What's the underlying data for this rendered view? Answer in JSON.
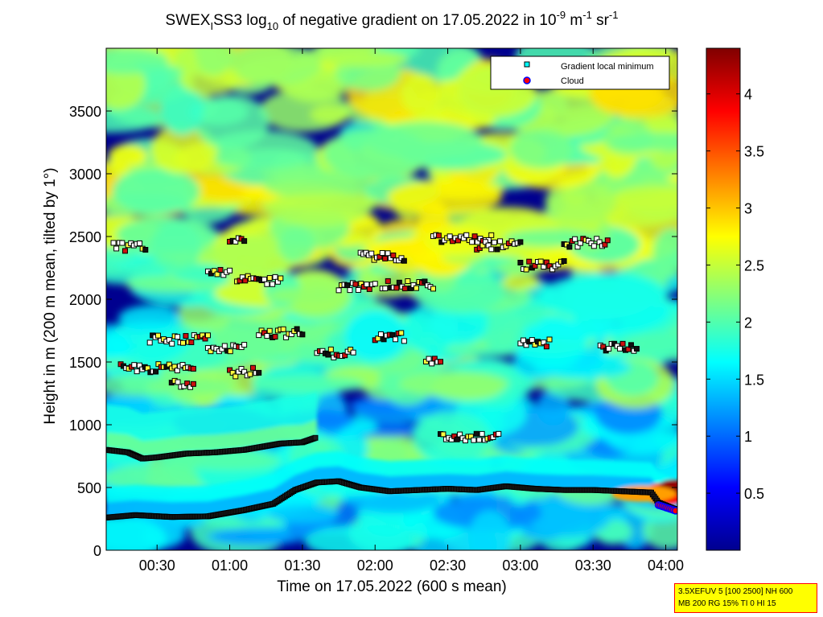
{
  "chart_data": {
    "type": "heatmap",
    "title": {
      "part1": "SWEX",
      "sub1": "I",
      "part2": "SS3 log",
      "sub2": "10",
      "part3": " of negative gradient on 17.05.2022 in 10",
      "sup1": "-9",
      "part4": " m",
      "sup2": "-1",
      "part5": " sr",
      "sup3": "-1"
    },
    "xlabel": "Time on 17.05.2022 (600 s mean)",
    "ylabel": "Height in m (200 m mean, tilted by 1°)",
    "x_range_hours": [
      0.15,
      4.08
    ],
    "ylim": [
      0,
      4000
    ],
    "x_ticks": [
      {
        "value": 0.5,
        "label": "00:30"
      },
      {
        "value": 1.0,
        "label": "01:00"
      },
      {
        "value": 1.5,
        "label": "01:30"
      },
      {
        "value": 2.0,
        "label": "02:00"
      },
      {
        "value": 2.5,
        "label": "02:30"
      },
      {
        "value": 3.0,
        "label": "03:00"
      },
      {
        "value": 3.5,
        "label": "03:30"
      },
      {
        "value": 4.0,
        "label": "04:00"
      }
    ],
    "y_ticks": [
      {
        "value": 0,
        "label": "0"
      },
      {
        "value": 500,
        "label": "500"
      },
      {
        "value": 1000,
        "label": "1000"
      },
      {
        "value": 1500,
        "label": "1500"
      },
      {
        "value": 2000,
        "label": "2000"
      },
      {
        "value": 2500,
        "label": "2500"
      },
      {
        "value": 3000,
        "label": "3000"
      },
      {
        "value": 3500,
        "label": "3500"
      }
    ],
    "colorbar": {
      "range": [
        0,
        4.4
      ],
      "ticks": [
        {
          "value": 0.5,
          "label": "0.5"
        },
        {
          "value": 1.0,
          "label": "1"
        },
        {
          "value": 1.5,
          "label": "1.5"
        },
        {
          "value": 2.0,
          "label": "2"
        },
        {
          "value": 2.5,
          "label": "2.5"
        },
        {
          "value": 3.0,
          "label": "3"
        },
        {
          "value": 3.5,
          "label": "3.5"
        },
        {
          "value": 4.0,
          "label": "4"
        }
      ],
      "colormap": "jet"
    },
    "legend": {
      "placement": "top-right",
      "entries": [
        {
          "label": "Gradient local minimum",
          "color": "#00ffff",
          "marker": "square"
        },
        {
          "label": "Cloud",
          "color": "#ff0000",
          "edge": "#0000ff",
          "marker": "circle"
        }
      ]
    },
    "features": {
      "lower_layer_height": [
        [
          0.15,
          260
        ],
        [
          0.35,
          280
        ],
        [
          0.6,
          265
        ],
        [
          0.85,
          270
        ],
        [
          1.1,
          320
        ],
        [
          1.3,
          370
        ],
        [
          1.45,
          480
        ],
        [
          1.6,
          540
        ],
        [
          1.75,
          550
        ],
        [
          1.9,
          500
        ],
        [
          2.1,
          470
        ],
        [
          2.3,
          480
        ],
        [
          2.5,
          490
        ],
        [
          2.7,
          480
        ],
        [
          2.9,
          510
        ],
        [
          3.1,
          490
        ],
        [
          3.3,
          480
        ],
        [
          3.5,
          480
        ],
        [
          3.7,
          470
        ],
        [
          3.9,
          460
        ],
        [
          3.95,
          380
        ],
        [
          4.08,
          320
        ]
      ],
      "upper_layer_height": [
        [
          0.15,
          800
        ],
        [
          0.3,
          780
        ],
        [
          0.4,
          730
        ],
        [
          0.5,
          740
        ],
        [
          0.7,
          770
        ],
        [
          0.9,
          780
        ],
        [
          1.0,
          790
        ],
        [
          1.1,
          800
        ],
        [
          1.2,
          820
        ],
        [
          1.35,
          850
        ],
        [
          1.5,
          860
        ],
        [
          1.6,
          900
        ]
      ],
      "gradient_minima_groups": [
        {
          "x": [
            0.2,
            0.42
          ],
          "y": 2420
        },
        {
          "x": [
            0.45,
            0.85
          ],
          "y": 1680
        },
        {
          "x": [
            0.25,
            0.75
          ],
          "y": 1450
        },
        {
          "x": [
            0.6,
            0.75
          ],
          "y": 1330
        },
        {
          "x": [
            0.85,
            1.1
          ],
          "y": 1620
        },
        {
          "x": [
            1.0,
            1.2
          ],
          "y": 1420
        },
        {
          "x": [
            0.85,
            1.0
          ],
          "y": 2200
        },
        {
          "x": [
            1.05,
            1.35
          ],
          "y": 2150
        },
        {
          "x": [
            1.0,
            1.1
          ],
          "y": 2490
        },
        {
          "x": [
            1.2,
            1.5
          ],
          "y": 1730
        },
        {
          "x": [
            1.6,
            1.85
          ],
          "y": 1570
        },
        {
          "x": [
            1.75,
            2.0
          ],
          "y": 2100
        },
        {
          "x": [
            1.9,
            2.2
          ],
          "y": 2340
        },
        {
          "x": [
            2.05,
            2.4
          ],
          "y": 2110
        },
        {
          "x": [
            2.0,
            2.2
          ],
          "y": 1700
        },
        {
          "x": [
            2.35,
            2.45
          ],
          "y": 1500
        },
        {
          "x": [
            2.4,
            2.8
          ],
          "y": 2480
        },
        {
          "x": [
            2.7,
            3.0
          ],
          "y": 2430
        },
        {
          "x": [
            2.45,
            2.85
          ],
          "y": 900
        },
        {
          "x": [
            3.0,
            3.3
          ],
          "y": 2270
        },
        {
          "x": [
            3.0,
            3.2
          ],
          "y": 1650
        },
        {
          "x": [
            3.55,
            3.8
          ],
          "y": 1620
        },
        {
          "x": [
            3.3,
            3.6
          ],
          "y": 2450
        }
      ]
    }
  },
  "info_box": {
    "line1": "3.5XEFUV 5 [100 2500] NH 600",
    "line2": "MB 200 RG 15% TI 0 HI 15"
  }
}
